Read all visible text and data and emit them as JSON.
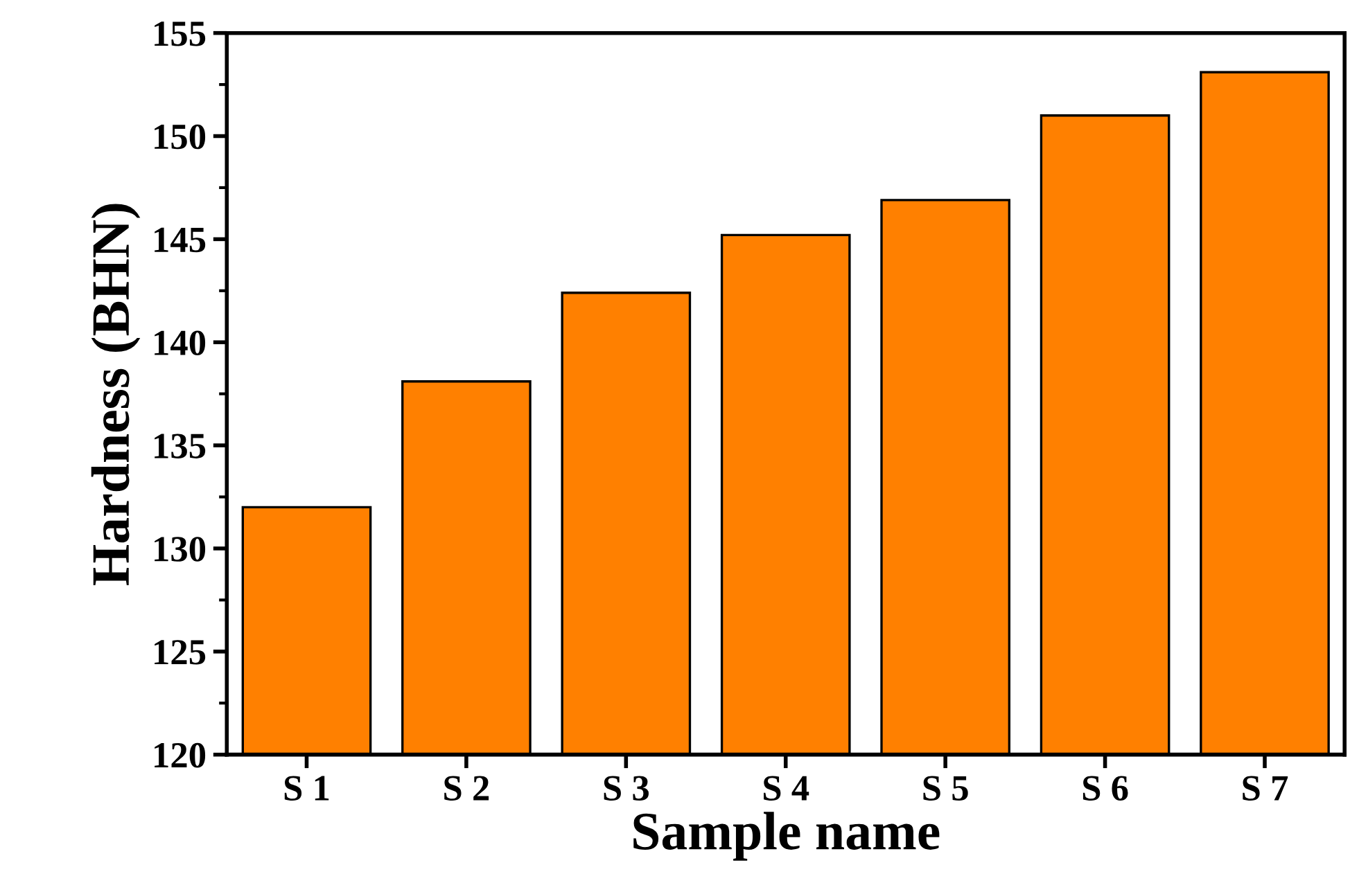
{
  "chart_data": {
    "type": "bar",
    "xlabel": "Sample name",
    "ylabel": "Hardness (BHN)",
    "categories": [
      "S 1",
      "S 2",
      "S 3",
      "S 4",
      "S 5",
      "S 6",
      "S 7"
    ],
    "values": [
      132.0,
      138.1,
      142.4,
      145.2,
      146.9,
      151.0,
      153.1
    ],
    "color": "#ff8000",
    "ylim": [
      120,
      155
    ],
    "yticks": [
      120,
      125,
      130,
      135,
      140,
      145,
      150,
      155
    ],
    "grid": false,
    "legend": false
  }
}
